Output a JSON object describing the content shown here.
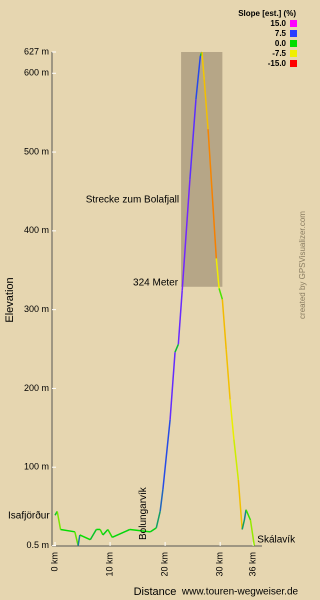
{
  "chart_data": {
    "type": "line",
    "x_label": "Distance",
    "y_label": "Elevation",
    "credit": "www.touren-wegweiser.de",
    "side_credit": "created by GPSVisualizer.com",
    "xlim": [
      -0.55,
      37.6
    ],
    "ylim": [
      0,
      627
    ],
    "xticks": [
      {
        "value": 0,
        "label": "0 km"
      },
      {
        "value": 10,
        "label": "10 km"
      },
      {
        "value": 20,
        "label": "20 km"
      },
      {
        "value": 30,
        "label": "30 km"
      },
      {
        "value": 36,
        "label": "36 km"
      }
    ],
    "yticks": [
      {
        "value": 0.5,
        "label": "0.5 m"
      },
      {
        "value": 100,
        "label": "100 m"
      },
      {
        "value": 200,
        "label": "200 m"
      },
      {
        "value": 300,
        "label": "300 m"
      },
      {
        "value": 400,
        "label": "400 m"
      },
      {
        "value": 500,
        "label": "500 m"
      },
      {
        "value": 600,
        "label": "600 m"
      },
      {
        "value": 627,
        "label": "627 m"
      }
    ],
    "x": [
      0,
      0.4,
      1,
      3.6,
      4.2,
      4.5,
      6.4,
      7.5,
      8.2,
      8.7,
      9.6,
      10.4,
      13.6,
      17.3,
      18.4,
      19.1,
      19.6,
      20.9,
      21.8,
      22.4,
      23.1,
      24.5,
      25.6,
      26.4,
      26.7,
      27.1,
      27.8,
      28.5,
      29.3,
      29.8,
      30.4,
      31.1,
      31.8,
      32.5,
      33.3,
      34,
      34.4,
      34.7,
      35.5,
      36.2
    ],
    "series": [
      {
        "values": [
          39,
          44,
          21,
          18,
          0.5,
          14,
          8,
          21,
          21,
          14,
          21,
          11,
          21,
          18,
          23,
          44,
          72,
          160,
          246,
          256,
          324,
          465,
          567,
          622,
          627,
          592,
          529,
          453,
          365,
          327,
          313,
          249,
          186,
          135,
          84,
          21,
          33,
          46,
          33,
          0.5
        ]
      }
    ],
    "slope_legend": {
      "title": "Slope [est.] (%)",
      "stops": [
        {
          "value": 15,
          "label": "15.0",
          "color": "#ff00ff"
        },
        {
          "value": 7.5,
          "label": "7.5",
          "color": "#2a3cff"
        },
        {
          "value": 0,
          "label": "0.0",
          "color": "#00dd00"
        },
        {
          "value": -7.5,
          "label": "-7.5",
          "color": "#f0f000"
        },
        {
          "value": -15,
          "label": "-15.0",
          "color": "#ff0000"
        }
      ]
    },
    "highlight": {
      "label": "Strecke zum Bolafjall",
      "height_label": "324 Meter",
      "x": [
        22.9,
        30.4
      ],
      "y": [
        329,
        627
      ]
    },
    "places": [
      {
        "name": "Isafjörður",
        "x": 0
      },
      {
        "name": "Bolungarvík",
        "x": 17.3
      },
      {
        "name": "Skálavík",
        "x": 36.2
      }
    ]
  }
}
